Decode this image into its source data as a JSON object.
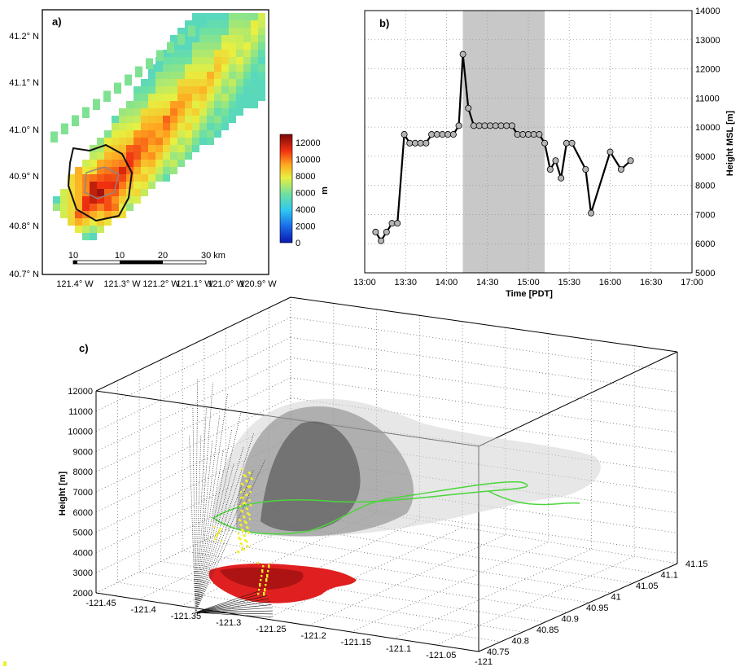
{
  "colors": {
    "grid_gray": "#bbbbbb",
    "shade": "#c8c8c8",
    "line": "#000000",
    "marker_fill": "#b5b5b5",
    "lightning": "#f3ef2a",
    "fire_area": "#e02020",
    "perimeter": "#4ad63a"
  },
  "chart_data": [
    {
      "panel": "a)",
      "type": "heatmap",
      "title": "",
      "xlabel": "",
      "ylabel": "",
      "x_ticks": [
        "121.4° W",
        "121.3° W",
        "121.2° W",
        "121.1° W",
        "121.0° W",
        "120.9° W"
      ],
      "y_ticks": [
        "40.7° N",
        "40.8° N",
        "40.9° N",
        "41.0° N",
        "41.1° N",
        "41.2° N"
      ],
      "xlim": [
        -121.45,
        -120.85
      ],
      "ylim": [
        40.7,
        41.25
      ],
      "colorbar": {
        "label": "m",
        "min": 0,
        "max": 13000,
        "ticks": [
          0,
          2000,
          4000,
          6000,
          8000,
          10000,
          12000
        ]
      },
      "scalebar": {
        "labels": [
          "10",
          "10",
          "20",
          "30 km"
        ]
      },
      "grid": false
    },
    {
      "panel": "b)",
      "type": "line",
      "title": "",
      "xlabel": "Time [PDT]",
      "ylabel": "Height MSL [m]",
      "x_ticks": [
        "13:00",
        "13:30",
        "14:00",
        "14:30",
        "15:00",
        "15:30",
        "16:00",
        "16:30",
        "17:00"
      ],
      "xlim": [
        780,
        1020
      ],
      "ylim": [
        5000,
        14000
      ],
      "y_ticks": [
        5000,
        6000,
        7000,
        8000,
        9000,
        10000,
        11000,
        12000,
        13000,
        14000
      ],
      "shaded_x": [
        852,
        912
      ],
      "grid": true,
      "x": [
        788,
        792,
        796,
        800,
        804,
        809,
        813,
        817,
        821,
        825,
        829,
        833,
        837,
        841,
        845,
        849,
        852,
        856,
        860,
        864,
        868,
        872,
        876,
        880,
        884,
        888,
        892,
        896,
        900,
        904,
        908,
        912,
        916,
        920,
        924,
        928,
        932,
        942,
        946,
        960,
        968,
        975
      ],
      "y": [
        6400,
        6100,
        6400,
        6700,
        6700,
        9750,
        9450,
        9450,
        9450,
        9450,
        9750,
        9750,
        9750,
        9750,
        9750,
        10050,
        12500,
        10650,
        10050,
        10050,
        10050,
        10050,
        10050,
        10050,
        10050,
        10050,
        9750,
        9750,
        9750,
        9750,
        9750,
        9450,
        8550,
        8850,
        8250,
        9450,
        9450,
        8550,
        7050,
        9150,
        8550,
        8850
      ]
    },
    {
      "panel": "c)",
      "type": "scatter",
      "title": "",
      "xlabel": "",
      "ylabel": "Height [m]",
      "z_ticks": [
        2000,
        3000,
        4000,
        5000,
        6000,
        7000,
        8000,
        9000,
        10000,
        11000,
        12000
      ],
      "x_ticks": [
        "-121.45",
        "-121.4",
        "-121.35",
        "-121.3",
        "-121.25",
        "-121.2",
        "-121.15",
        "-121.1",
        "-121.05",
        "-121"
      ],
      "y_ticks": [
        "40.75",
        "40.8",
        "40.85",
        "40.9",
        "40.95",
        "41",
        "41.05",
        "41.1",
        "41.15"
      ],
      "grid": true
    }
  ]
}
